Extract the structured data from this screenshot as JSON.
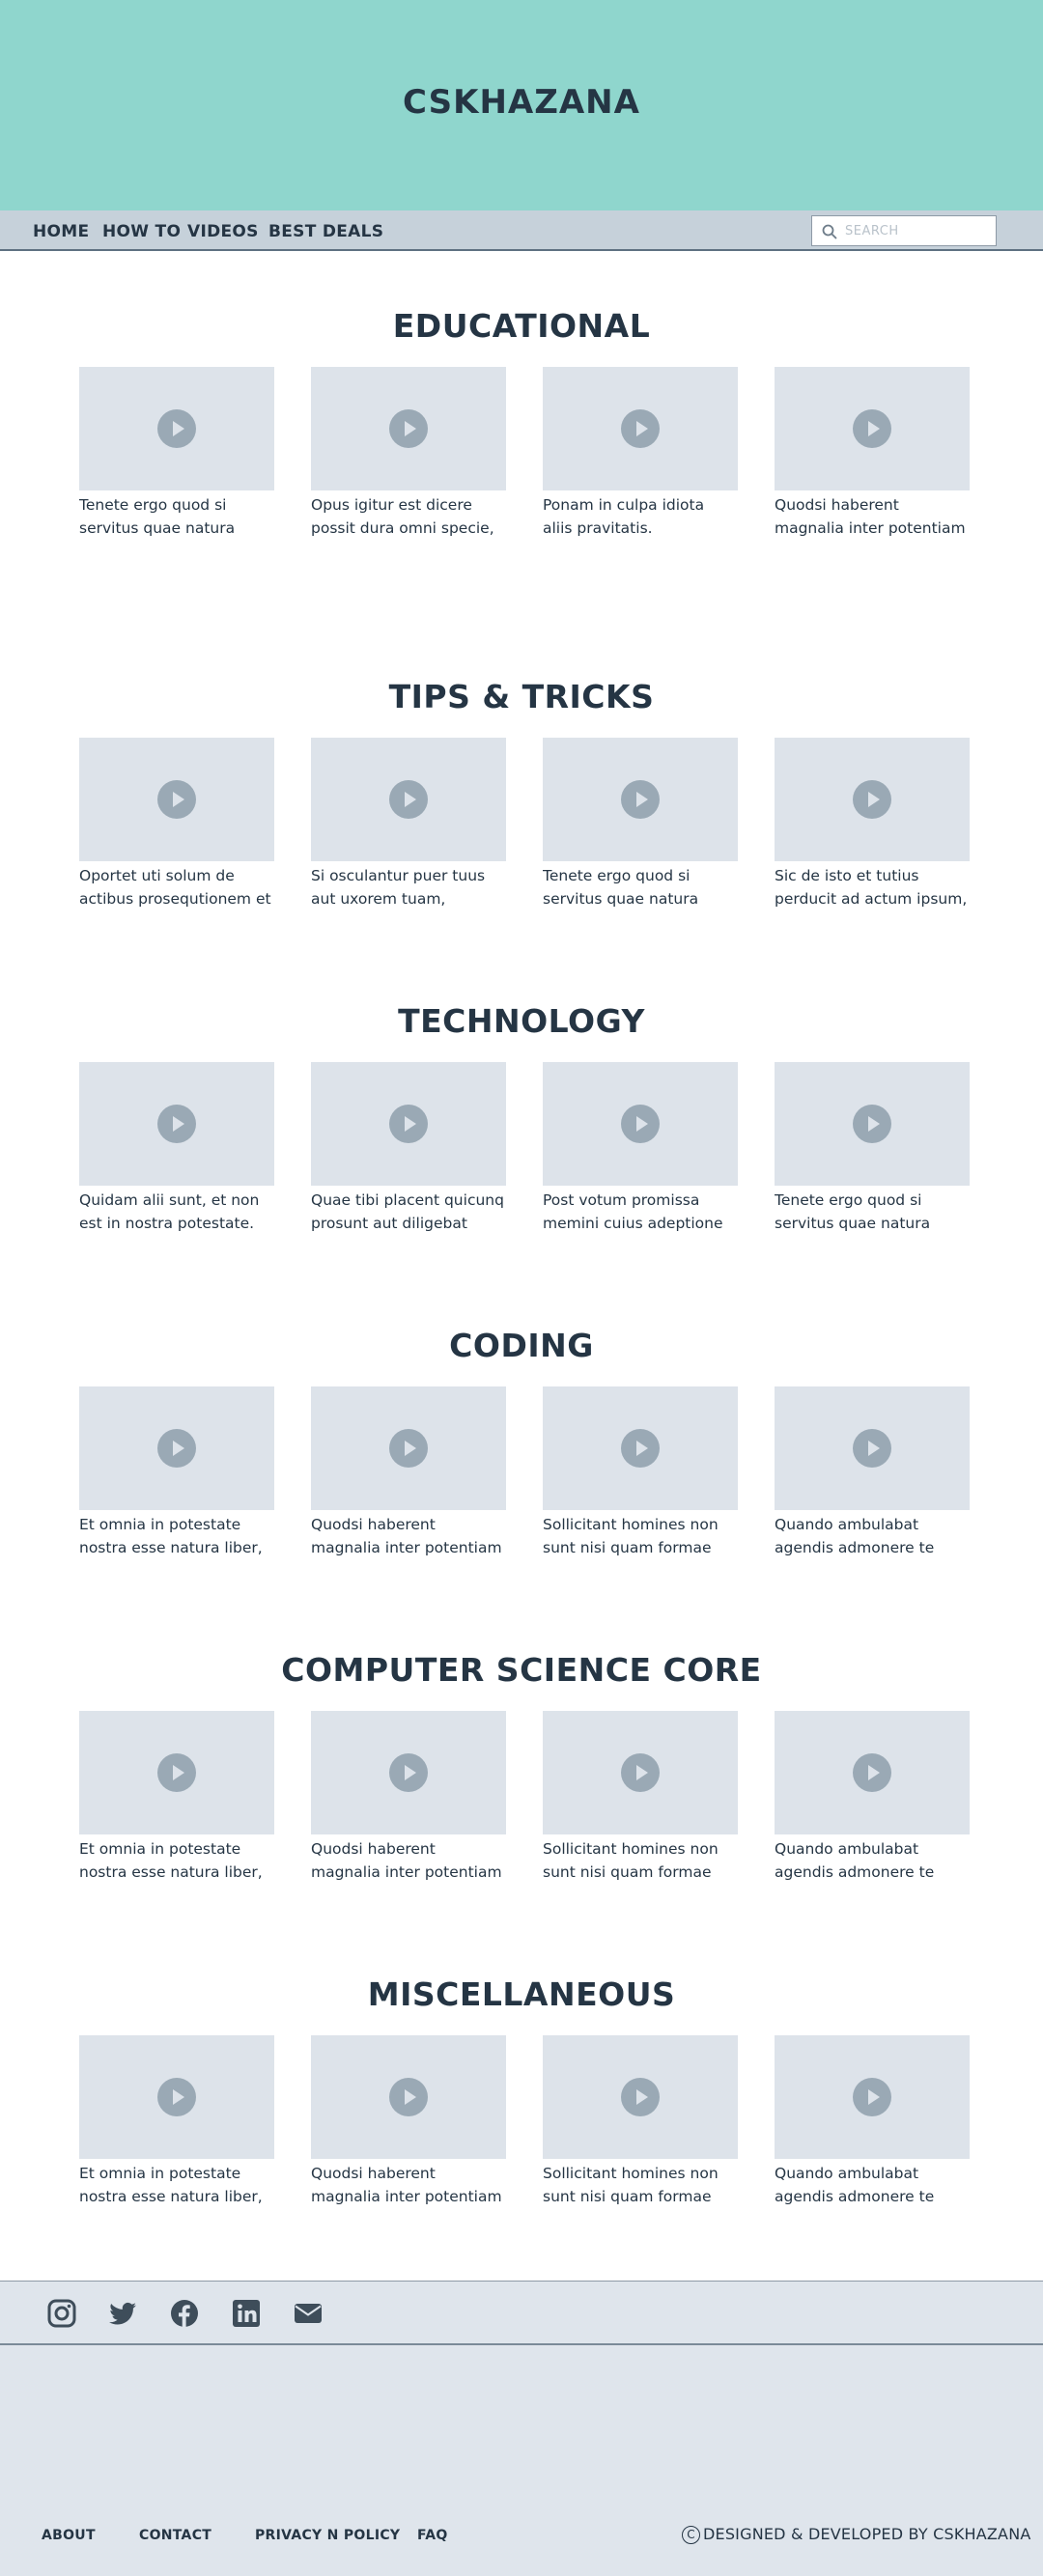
{
  "header": {
    "brand": "CSKHAZANA"
  },
  "nav": {
    "items": [
      "HOME",
      "HOW TO",
      "VIDEOS",
      "BEST DEALS"
    ],
    "search_placeholder": "SEARCH"
  },
  "sections": [
    {
      "title": "EDUCATIONAL",
      "videos": [
        {
          "line1": "Tenete ergo quod si",
          "line2": "servitus quae natura"
        },
        {
          "line1": "Opus igitur est dicere",
          "line2": "possit dura omni specie,"
        },
        {
          "line1": "Ponam in culpa idiota",
          "line2": "aliis pravitatis."
        },
        {
          "line1": "Quodsi haberent",
          "line2": "magnalia inter potentiam"
        }
      ]
    },
    {
      "title": "TIPS & TRICKS",
      "videos": [
        {
          "line1": "Oportet uti solum de",
          "line2": "actibus prosequtionem et"
        },
        {
          "line1": "Si osculantur puer tuus",
          "line2": "aut uxorem tuam,"
        },
        {
          "line1": "Tenete ergo quod si",
          "line2": "servitus quae natura"
        },
        {
          "line1": "Sic de isto et tutius",
          "line2": "perducit ad actum ipsum,"
        }
      ]
    },
    {
      "title": "TECHNOLOGY",
      "videos": [
        {
          "line1": "Quidam alii sunt, et non",
          "line2": "est in nostra potestate."
        },
        {
          "line1": "Quae tibi placent quicunq",
          "line2": "prosunt aut diligebat"
        },
        {
          "line1": "Post votum promissa",
          "line2": "memini cuius adeptione"
        },
        {
          "line1": "Tenete ergo quod si",
          "line2": "servitus quae natura"
        }
      ]
    },
    {
      "title": "CODING",
      "videos": [
        {
          "line1": "Et omnia in potestate",
          "line2": "nostra esse natura liber,"
        },
        {
          "line1": "Quodsi haberent",
          "line2": "magnalia inter potentiam"
        },
        {
          "line1": "Sollicitant homines non",
          "line2": "sunt nisi quam formae"
        },
        {
          "line1": "Quando ambulabat",
          "line2": "agendis admonere te"
        }
      ]
    },
    {
      "title": "COMPUTER SCIENCE CORE",
      "videos": [
        {
          "line1": "Et omnia in potestate",
          "line2": "nostra esse natura liber,"
        },
        {
          "line1": "Quodsi haberent",
          "line2": "magnalia inter potentiam"
        },
        {
          "line1": "Sollicitant homines non",
          "line2": "sunt nisi quam formae"
        },
        {
          "line1": "Quando ambulabat",
          "line2": "agendis admonere te"
        }
      ]
    },
    {
      "title": "MISCELLANEOUS",
      "videos": [
        {
          "line1": "Et omnia in potestate",
          "line2": "nostra esse natura liber,"
        },
        {
          "line1": "Quodsi haberent",
          "line2": "magnalia inter potentiam"
        },
        {
          "line1": "Sollicitant homines non",
          "line2": "sunt nisi quam formae"
        },
        {
          "line1": "Quando ambulabat",
          "line2": "agendis admonere te"
        }
      ]
    }
  ],
  "footer": {
    "social_icons": [
      "instagram-icon",
      "twitter-icon",
      "facebook-icon",
      "linkedin-icon",
      "email-icon"
    ],
    "links": [
      "ABOUT",
      "CONTACT",
      "PRIVACY N POLICY",
      "FAQ"
    ],
    "copyright_symbol": "C",
    "copyright_text": "DESIGNED & DEVELOPED BY CSKHAZANA"
  },
  "colors": {
    "header_bg": "#8fd6cd",
    "nav_bg": "#c6d1da",
    "thumbnail_bg": "#dde3ea",
    "footer_bg": "#dfe5ec",
    "text": "#253544"
  }
}
